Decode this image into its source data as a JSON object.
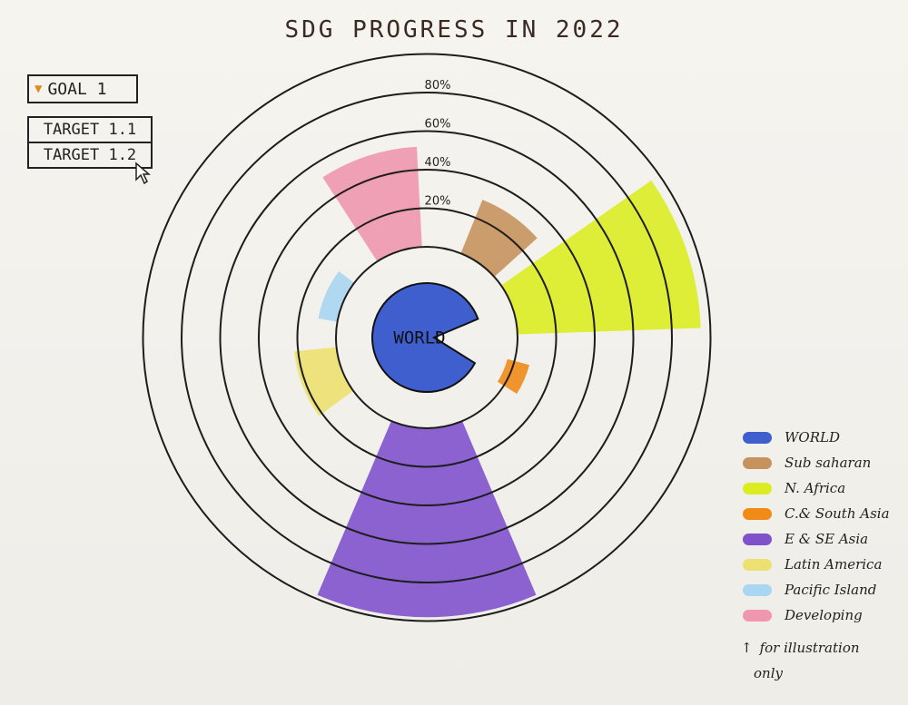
{
  "title": "SDG PROGRESS IN 2022",
  "controls": {
    "goal_label": "GOAL 1",
    "targets": [
      "TARGET 1.1",
      "TARGET 1.2"
    ]
  },
  "chart_data": {
    "type": "radial-bar",
    "title": "SDG PROGRESS IN 2022",
    "center_label": "WORLD",
    "ring_ticks": [
      "20%",
      "40%",
      "60%",
      "80%"
    ],
    "categories": [
      "WORLD",
      "Sub saharan",
      "N. Africa",
      "C.& South Asia",
      "E & SE Asia",
      "Latin America",
      "Pacific Island",
      "Developing"
    ],
    "values": [
      null,
      30,
      95,
      8,
      98,
      22,
      10,
      52
    ],
    "colors": [
      "#3f5fcf",
      "#c7925d",
      "#dcec22",
      "#f08b18",
      "#7f52cc",
      "#ece070",
      "#a9d6f2",
      "#ef97ae"
    ],
    "legend_position": "bottom-right"
  },
  "note": {
    "arrow": "↑",
    "line1": "for illustration",
    "line2": "only"
  }
}
